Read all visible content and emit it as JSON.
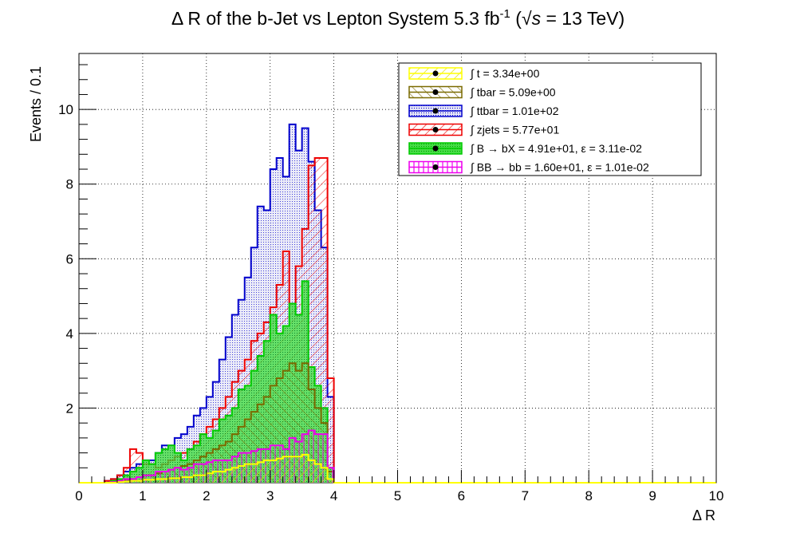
{
  "chart_data": {
    "type": "histogram",
    "title": "Δ R of the b-Jet vs Lepton System 5.3 fb⁻¹ (√s = 13 TeV)",
    "title_parts": {
      "main": "Δ R of the b-Jet vs Lepton System 5.3 fb",
      "sup": "-1",
      "paren_open": " (",
      "sqrt": "√",
      "s": "s",
      "energy": " = 13 TeV)"
    },
    "xlabel": "Δ R",
    "ylabel": "Events / 0.1",
    "xlim": [
      0,
      10
    ],
    "ylim": [
      0,
      11.5
    ],
    "bin_width": 0.1,
    "grid": true,
    "legend_position": "top-right",
    "x_ticks": [
      "0",
      "1",
      "2",
      "3",
      "4",
      "5",
      "6",
      "7",
      "8",
      "9",
      "10"
    ],
    "y_ticks": [
      "2",
      "4",
      "6",
      "8",
      "10"
    ],
    "legend": [
      {
        "label": "∫ t = 3.34e+00",
        "color": "#ffff00"
      },
      {
        "label": "∫ tbar = 5.09e+00",
        "color": "#7a6a00"
      },
      {
        "label": "∫ ttbar = 1.01e+02",
        "color": "#0000cc"
      },
      {
        "label": "∫ zjets = 5.77e+01",
        "color": "#ee0000"
      },
      {
        "label": "∫ B → bX = 4.91e+01, ε = 3.11e-02",
        "color": "#00cc00"
      },
      {
        "label": "∫ BB → bb = 1.60e+01, ε = 1.01e-02",
        "color": "#ee00ee"
      }
    ],
    "series": [
      {
        "name": "ttbar",
        "color": "#0000cc",
        "fill": "#c8c8ee",
        "x_start": 0.4,
        "values": [
          0.05,
          0.1,
          0.2,
          0.3,
          0.4,
          0.5,
          0.6,
          0.6,
          0.8,
          1.0,
          1.0,
          1.2,
          1.3,
          1.5,
          1.8,
          2.0,
          2.3,
          2.7,
          3.3,
          3.9,
          4.5,
          4.9,
          5.5,
          6.3,
          7.4,
          7.3,
          8.4,
          8.7,
          8.2,
          9.6,
          8.9,
          9.5,
          8.6,
          7.3,
          6.3,
          2.3
        ]
      },
      {
        "name": "zjets",
        "color": "#ee0000",
        "fill": "none",
        "x_start": 0.4,
        "values": [
          0.05,
          0.1,
          0.2,
          0.4,
          0.9,
          0.8,
          0.5,
          0.5,
          0.4,
          0.5,
          0.6,
          0.7,
          0.8,
          0.9,
          1.1,
          1.3,
          1.5,
          1.7,
          2.0,
          2.3,
          2.7,
          3.0,
          3.3,
          3.8,
          4.0,
          4.3,
          4.7,
          5.3,
          6.2,
          4.8,
          5.8,
          6.8,
          8.5,
          8.7,
          8.7,
          2.8
        ]
      },
      {
        "name": "B → bX",
        "color": "#00cc00",
        "fill": "#88e888",
        "x_start": 0.4,
        "values": [
          0.0,
          0.05,
          0.1,
          0.2,
          0.3,
          0.4,
          0.6,
          0.5,
          0.8,
          0.9,
          1.0,
          0.8,
          0.6,
          0.9,
          1.0,
          1.3,
          1.2,
          1.4,
          1.7,
          1.8,
          2.0,
          2.5,
          2.6,
          3.0,
          3.4,
          3.8,
          4.5,
          4.0,
          4.2,
          4.8,
          4.5,
          5.4,
          3.1,
          2.6,
          2.0,
          0.4
        ]
      },
      {
        "name": "tbar",
        "color": "#7a6a00",
        "fill": "none",
        "x_start": 0.4,
        "values": [
          0.0,
          0.02,
          0.05,
          0.08,
          0.1,
          0.15,
          0.2,
          0.2,
          0.25,
          0.3,
          0.35,
          0.4,
          0.45,
          0.5,
          0.6,
          0.7,
          0.8,
          0.9,
          1.0,
          1.1,
          1.3,
          1.5,
          1.7,
          1.9,
          2.1,
          2.3,
          2.6,
          2.8,
          3.0,
          3.2,
          3.0,
          3.2,
          2.5,
          2.0,
          1.6,
          0.3
        ]
      },
      {
        "name": "BB → bb",
        "color": "#ee00ee",
        "fill": "none",
        "x_start": 0.4,
        "values": [
          0.0,
          0.02,
          0.05,
          0.1,
          0.1,
          0.15,
          0.2,
          0.2,
          0.3,
          0.3,
          0.35,
          0.4,
          0.35,
          0.4,
          0.5,
          0.5,
          0.55,
          0.6,
          0.6,
          0.6,
          0.7,
          0.8,
          0.8,
          0.85,
          0.9,
          0.9,
          1.0,
          1.0,
          0.9,
          1.2,
          1.1,
          1.3,
          1.4,
          1.3,
          1.3,
          0.4
        ]
      },
      {
        "name": "t",
        "color": "#ffff00",
        "fill": "none",
        "x_start": 0.4,
        "values": [
          0.0,
          0.0,
          0.02,
          0.03,
          0.05,
          0.05,
          0.08,
          0.08,
          0.1,
          0.1,
          0.12,
          0.12,
          0.15,
          0.15,
          0.2,
          0.2,
          0.25,
          0.3,
          0.3,
          0.35,
          0.4,
          0.45,
          0.5,
          0.5,
          0.55,
          0.6,
          0.6,
          0.65,
          0.7,
          0.7,
          0.7,
          0.75,
          0.6,
          0.5,
          0.4,
          0.1
        ]
      }
    ]
  }
}
